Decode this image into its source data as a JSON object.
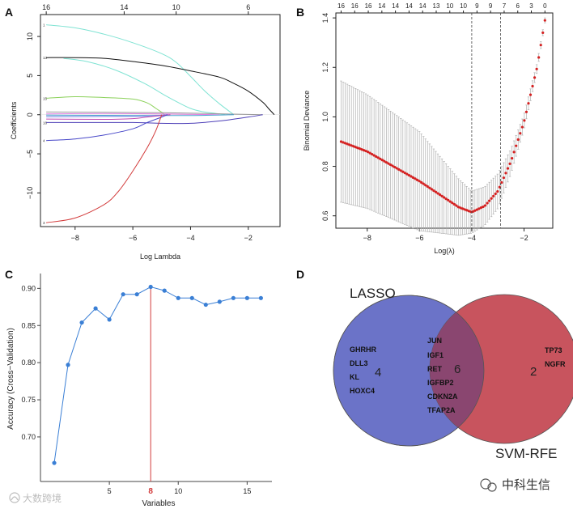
{
  "panels": {
    "a": "A",
    "b": "B",
    "c": "C",
    "d": "D"
  },
  "chart_data": [
    {
      "type": "line",
      "id": "lasso-coefficient-paths",
      "xlabel": "Log Lambda",
      "ylabel": "Coefficients",
      "xlim": [
        -9.2,
        -0.9
      ],
      "ylim": [
        -14.3,
        12.8
      ],
      "x_ticks": [
        -8,
        -6,
        -4,
        -2
      ],
      "y_ticks": [
        -10,
        -5,
        0,
        5,
        10
      ],
      "top_ticks": [
        {
          "x": -9,
          "label": "16"
        },
        {
          "x": -6.3,
          "label": "14"
        },
        {
          "x": -4.5,
          "label": "10"
        },
        {
          "x": -2,
          "label": "6"
        }
      ],
      "series": [
        {
          "name": "1",
          "label": "1",
          "color": "#7fe3d3",
          "x": [
            -9,
            -8,
            -7,
            -6,
            -5,
            -4.5,
            -4,
            -3.5,
            -3,
            -2.5
          ],
          "y": [
            11.5,
            11.1,
            10.3,
            9.2,
            7.8,
            6.7,
            4.9,
            3.0,
            1.4,
            0
          ]
        },
        {
          "name": "2",
          "label": "13",
          "color": "#111111",
          "x": [
            -9,
            -8,
            -7,
            -6,
            -5,
            -4,
            -3,
            -2.5,
            -2,
            -1.5,
            -1.3,
            -1.1
          ],
          "y": [
            7.3,
            7.3,
            7.2,
            6.8,
            6.3,
            5.6,
            4.8,
            4.0,
            3.0,
            1.6,
            0.8,
            0
          ]
        },
        {
          "name": "3",
          "label": "",
          "color": "#7fe3d3",
          "x": [
            -8.4,
            -7.6,
            -6.6,
            -5.6,
            -4.9,
            -4.4,
            -4,
            -3.6,
            -3.2,
            -2.8
          ],
          "y": [
            7.2,
            6.8,
            5.7,
            4.0,
            2.5,
            1.5,
            0.8,
            0.4,
            0.2,
            0
          ]
        },
        {
          "name": "4",
          "label": "15",
          "color": "#8bd15a",
          "x": [
            -9,
            -8,
            -7,
            -6,
            -5.5,
            -5.2,
            -5,
            -4.9
          ],
          "y": [
            2.1,
            2.3,
            2.2,
            2.0,
            1.5,
            0.8,
            0.3,
            0
          ]
        },
        {
          "name": "5",
          "label": "",
          "color": "#9a9a9a",
          "x": [
            -9,
            -7,
            -5,
            -3,
            -1.5
          ],
          "y": [
            0.35,
            0.3,
            0.25,
            0.12,
            0
          ]
        },
        {
          "name": "6",
          "label": "",
          "color": "#e07fe0",
          "x": [
            -9,
            -7,
            -5,
            -4,
            -3
          ],
          "y": [
            0.1,
            0.15,
            0.1,
            0.05,
            0
          ]
        },
        {
          "name": "7",
          "label": "",
          "color": "#4aa3d0",
          "x": [
            -9,
            -6,
            -4,
            -2.5
          ],
          "y": [
            -0.05,
            -0.1,
            -0.1,
            0
          ]
        },
        {
          "name": "8",
          "label": "",
          "color": "#6b7de0",
          "x": [
            -9,
            -6,
            -5.2,
            -4.8
          ],
          "y": [
            -0.25,
            -0.2,
            -0.1,
            0
          ]
        },
        {
          "name": "9",
          "label": "",
          "color": "#c04ab0",
          "x": [
            -9,
            -7,
            -6,
            -5.5,
            -5,
            -4.7
          ],
          "y": [
            -0.55,
            -0.6,
            -0.5,
            -0.3,
            -0.1,
            0
          ]
        },
        {
          "name": "10",
          "label": "16",
          "color": "#4d3fb8",
          "x": [
            -9,
            -8,
            -6,
            -5,
            -4,
            -3,
            -2,
            -1.5
          ],
          "y": [
            -1.0,
            -1.0,
            -1.0,
            -1.1,
            -1.1,
            -0.8,
            -0.3,
            0
          ]
        },
        {
          "name": "11",
          "label": "4",
          "color": "#4646c8",
          "x": [
            -9,
            -8,
            -7,
            -6,
            -5.5,
            -5,
            -4.8
          ],
          "y": [
            -3.3,
            -3.1,
            -2.6,
            -1.8,
            -1.0,
            -0.3,
            0
          ]
        },
        {
          "name": "12",
          "label": "3",
          "color": "#d23a3a",
          "x": [
            -9,
            -8,
            -7,
            -6.5,
            -6,
            -5.5,
            -5.2,
            -5
          ],
          "y": [
            -13.8,
            -13.2,
            -11.5,
            -9.8,
            -7.2,
            -4.2,
            -2.0,
            0
          ]
        }
      ]
    },
    {
      "type": "scatter",
      "id": "binomial-deviance-cv",
      "xlabel": "Log(λ)",
      "ylabel": "Binomial Deviance",
      "xlim": [
        -9.2,
        -0.9
      ],
      "ylim": [
        0.55,
        1.42
      ],
      "x_ticks": [
        -8,
        -6,
        -4,
        -2
      ],
      "y_ticks": [
        0.6,
        0.8,
        1.0,
        1.2,
        1.4
      ],
      "top_labels": [
        "16",
        "16",
        "16",
        "14",
        "14",
        "14",
        "14",
        "13",
        "10",
        "10",
        "9",
        "9",
        "7",
        "6",
        "3",
        "0"
      ],
      "vlines": [
        -4.0,
        -2.9
      ],
      "mean_at": {
        "x": [
          -9,
          -8,
          -7,
          -6,
          -5,
          -4.5,
          -4,
          -3.5,
          -3,
          -2.5,
          -2,
          -1.5,
          -1.2
        ],
        "y": [
          0.9,
          0.86,
          0.8,
          0.74,
          0.67,
          0.635,
          0.615,
          0.64,
          0.7,
          0.82,
          0.98,
          1.2,
          1.39
        ]
      },
      "error_half_width": {
        "x": [
          -9,
          -6,
          -4,
          -3,
          -2,
          -1.2
        ],
        "y": [
          0.245,
          0.2,
          0.085,
          0.07,
          0.03,
          0.01
        ]
      },
      "n_points": 100
    },
    {
      "type": "line",
      "id": "svm-rfe-accuracy",
      "xlabel": "Variables",
      "ylabel": "Accuracy (Cross−Validation)",
      "xlim": [
        0,
        16.8
      ],
      "ylim": [
        0.64,
        0.92
      ],
      "x_ticks": [
        5,
        10,
        15
      ],
      "y_ticks": [
        0.7,
        0.75,
        0.8,
        0.85,
        0.9
      ],
      "x": [
        1,
        2,
        3,
        4,
        5,
        6,
        7,
        8,
        9,
        10,
        11,
        12,
        13,
        14,
        15,
        16
      ],
      "y": [
        0.665,
        0.797,
        0.854,
        0.873,
        0.858,
        0.892,
        0.892,
        0.902,
        0.897,
        0.887,
        0.887,
        0.878,
        0.882,
        0.887,
        0.887,
        0.887
      ],
      "best": {
        "x": 8,
        "label": "8"
      }
    }
  ],
  "venn": {
    "left_title": "LASSO",
    "right_title": "SVM-RFE",
    "left_only": [
      "GHRHR",
      "DLL3",
      "KL",
      "HOXC4"
    ],
    "left_count": "4",
    "shared": [
      "JUN",
      "IGF1",
      "RET",
      "IGFBP2",
      "CDKN2A",
      "TFAP2A"
    ],
    "shared_count": "6",
    "right_only": [
      "TP73",
      "NGFR"
    ],
    "right_count": "2",
    "colors": {
      "left": "#6b73c8",
      "right": "#c8545e",
      "overlap": "#8a4670"
    }
  },
  "watermarks": {
    "left": "大数跨境",
    "right": "中科生信"
  },
  "colors": {
    "mean_point": "#d42020",
    "cv_error": "#b0b0b0",
    "accuracy": "#3a7fd5",
    "best_line": "#d23a3a"
  }
}
